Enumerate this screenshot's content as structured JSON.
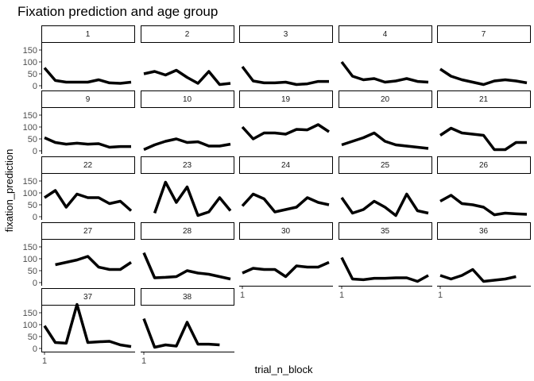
{
  "chart_data": {
    "type": "line",
    "title": "Fixation prediction and age group",
    "xlabel": "trial_n_block",
    "ylabel": "fixation_prediction",
    "yticks": [
      0,
      50,
      100,
      150
    ],
    "ylim": [
      0,
      180
    ],
    "xlim": [
      1,
      9
    ],
    "xtick_label": "1",
    "ncol": 5,
    "facets": [
      {
        "label": "1",
        "values": [
          75,
          22,
          15,
          15,
          15,
          25,
          12,
          10,
          15
        ]
      },
      {
        "label": "2",
        "values": [
          50,
          60,
          45,
          65,
          35,
          10,
          60,
          5,
          10
        ]
      },
      {
        "label": "3",
        "values": [
          80,
          20,
          12,
          12,
          15,
          5,
          8,
          18,
          18
        ]
      },
      {
        "label": "4",
        "values": [
          100,
          40,
          25,
          30,
          15,
          20,
          30,
          18,
          15
        ]
      },
      {
        "label": "7",
        "values": [
          70,
          40,
          25,
          15,
          5,
          20,
          25,
          20,
          12
        ]
      },
      {
        "label": "9",
        "values": [
          55,
          35,
          28,
          32,
          28,
          30,
          15,
          18,
          18
        ]
      },
      {
        "label": "10",
        "values": [
          5,
          25,
          40,
          50,
          35,
          38,
          20,
          20,
          28
        ]
      },
      {
        "label": "19",
        "values": [
          100,
          50,
          75,
          75,
          70,
          90,
          88,
          110,
          80
        ]
      },
      {
        "label": "20",
        "values": [
          25,
          40,
          55,
          75,
          40,
          25,
          20,
          15,
          10
        ]
      },
      {
        "label": "21",
        "values": [
          65,
          95,
          75,
          70,
          65,
          5,
          5,
          35,
          35
        ]
      },
      {
        "label": "22",
        "values": [
          80,
          110,
          40,
          95,
          80,
          80,
          55,
          65,
          25
        ]
      },
      {
        "label": "23",
        "values": [
          null,
          15,
          145,
          60,
          125,
          5,
          20,
          80,
          25
        ]
      },
      {
        "label": "24",
        "values": [
          45,
          95,
          75,
          20,
          30,
          40,
          80,
          60,
          50
        ]
      },
      {
        "label": "25",
        "values": [
          80,
          15,
          30,
          65,
          40,
          5,
          95,
          25,
          15
        ]
      },
      {
        "label": "26",
        "values": [
          65,
          90,
          55,
          50,
          40,
          8,
          15,
          12,
          10
        ]
      },
      {
        "label": "27",
        "values": [
          null,
          75,
          85,
          95,
          110,
          65,
          55,
          55,
          85
        ]
      },
      {
        "label": "28",
        "values": [
          125,
          20,
          22,
          25,
          50,
          40,
          35,
          25,
          15
        ]
      },
      {
        "label": "30",
        "values": [
          40,
          60,
          55,
          55,
          25,
          70,
          65,
          65,
          85
        ]
      },
      {
        "label": "35",
        "values": [
          105,
          15,
          12,
          18,
          18,
          20,
          20,
          5,
          30
        ]
      },
      {
        "label": "36",
        "values": [
          30,
          15,
          30,
          55,
          5,
          10,
          15,
          25,
          null
        ]
      },
      {
        "label": "37",
        "values": [
          95,
          25,
          22,
          185,
          25,
          28,
          30,
          15,
          8
        ]
      },
      {
        "label": "38",
        "values": [
          125,
          5,
          15,
          10,
          110,
          18,
          18,
          15,
          null
        ]
      }
    ]
  }
}
